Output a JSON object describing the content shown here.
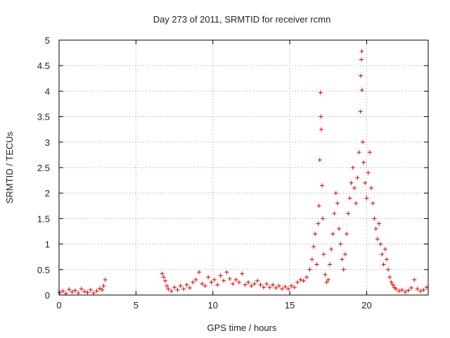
{
  "chart_data": {
    "type": "scatter",
    "title": "Day 273 of 2011, SRMTID for receiver rcmn",
    "xlabel": "GPS time / hours",
    "ylabel": "SRMTID / TECUs",
    "xlim": [
      0,
      24
    ],
    "ylim": [
      0,
      5
    ],
    "xticks": [
      0,
      5,
      10,
      15,
      20
    ],
    "yticks": [
      0,
      0.5,
      1,
      1.5,
      2,
      2.5,
      3,
      3.5,
      4,
      4.5,
      5
    ],
    "grid": true,
    "marker": "+",
    "series_color": "#e00000",
    "series": [
      {
        "name": "SRMTID",
        "points": [
          [
            0.05,
            0.05
          ],
          [
            0.25,
            0.08
          ],
          [
            0.45,
            0.03
          ],
          [
            0.65,
            0.11
          ],
          [
            0.85,
            0.06
          ],
          [
            1.05,
            0.09
          ],
          [
            1.25,
            0.04
          ],
          [
            1.45,
            0.12
          ],
          [
            1.65,
            0.07
          ],
          [
            1.85,
            0.05
          ],
          [
            2.05,
            0.1
          ],
          [
            2.25,
            0.04
          ],
          [
            2.45,
            0.08
          ],
          [
            2.65,
            0.13
          ],
          [
            2.8,
            0.1
          ],
          [
            2.9,
            0.18
          ],
          [
            3.0,
            0.3
          ],
          [
            6.7,
            0.42
          ],
          [
            6.8,
            0.35
          ],
          [
            6.9,
            0.28
          ],
          [
            7.0,
            0.18
          ],
          [
            7.1,
            0.12
          ],
          [
            7.3,
            0.08
          ],
          [
            7.5,
            0.15
          ],
          [
            7.7,
            0.1
          ],
          [
            7.9,
            0.18
          ],
          [
            8.1,
            0.12
          ],
          [
            8.3,
            0.2
          ],
          [
            8.5,
            0.14
          ],
          [
            8.7,
            0.25
          ],
          [
            8.9,
            0.3
          ],
          [
            9.1,
            0.45
          ],
          [
            9.3,
            0.22
          ],
          [
            9.5,
            0.18
          ],
          [
            9.7,
            0.35
          ],
          [
            9.9,
            0.25
          ],
          [
            10.1,
            0.3
          ],
          [
            10.3,
            0.2
          ],
          [
            10.5,
            0.38
          ],
          [
            10.7,
            0.28
          ],
          [
            10.9,
            0.45
          ],
          [
            11.1,
            0.32
          ],
          [
            11.3,
            0.22
          ],
          [
            11.5,
            0.3
          ],
          [
            11.7,
            0.25
          ],
          [
            11.9,
            0.42
          ],
          [
            12.1,
            0.2
          ],
          [
            12.3,
            0.25
          ],
          [
            12.5,
            0.18
          ],
          [
            12.7,
            0.22
          ],
          [
            12.9,
            0.28
          ],
          [
            13.1,
            0.2
          ],
          [
            13.3,
            0.15
          ],
          [
            13.5,
            0.22
          ],
          [
            13.7,
            0.15
          ],
          [
            13.9,
            0.2
          ],
          [
            14.1,
            0.14
          ],
          [
            14.3,
            0.18
          ],
          [
            14.5,
            0.12
          ],
          [
            14.7,
            0.16
          ],
          [
            14.9,
            0.12
          ],
          [
            15.1,
            0.18
          ],
          [
            15.3,
            0.15
          ],
          [
            15.5,
            0.25
          ],
          [
            15.7,
            0.3
          ],
          [
            15.9,
            0.28
          ],
          [
            16.1,
            0.35
          ],
          [
            16.3,
            0.5
          ],
          [
            16.45,
            0.7
          ],
          [
            16.55,
            0.95
          ],
          [
            16.65,
            1.2
          ],
          [
            16.75,
            0.6
          ],
          [
            16.85,
            1.4
          ],
          [
            16.9,
            1.75
          ],
          [
            16.95,
            2.65
          ],
          [
            17.0,
            3.97
          ],
          [
            17.02,
            3.5
          ],
          [
            17.05,
            3.25
          ],
          [
            17.1,
            2.15
          ],
          [
            17.15,
            1.5
          ],
          [
            17.2,
            0.8
          ],
          [
            17.3,
            0.4
          ],
          [
            17.4,
            0.25
          ],
          [
            17.5,
            0.3
          ],
          [
            17.6,
            0.6
          ],
          [
            17.7,
            0.9
          ],
          [
            17.8,
            1.2
          ],
          [
            17.9,
            1.6
          ],
          [
            18.0,
            2.0
          ],
          [
            18.1,
            1.8
          ],
          [
            18.2,
            1.3
          ],
          [
            18.3,
            1.0
          ],
          [
            18.4,
            0.7
          ],
          [
            18.5,
            0.5
          ],
          [
            18.6,
            0.8
          ],
          [
            18.7,
            1.2
          ],
          [
            18.8,
            1.6
          ],
          [
            18.9,
            1.9
          ],
          [
            19.0,
            2.2
          ],
          [
            19.1,
            2.5
          ],
          [
            19.2,
            2.1
          ],
          [
            19.3,
            1.8
          ],
          [
            19.4,
            2.3
          ],
          [
            19.5,
            2.8
          ],
          [
            19.6,
            3.6
          ],
          [
            19.62,
            4.3
          ],
          [
            19.65,
            4.62
          ],
          [
            19.68,
            4.78
          ],
          [
            19.7,
            4.02
          ],
          [
            19.75,
            3.0
          ],
          [
            19.8,
            2.6
          ],
          [
            19.9,
            2.2
          ],
          [
            20.0,
            1.9
          ],
          [
            20.1,
            2.4
          ],
          [
            20.2,
            2.8
          ],
          [
            20.3,
            2.1
          ],
          [
            20.4,
            1.8
          ],
          [
            20.5,
            1.5
          ],
          [
            20.6,
            1.3
          ],
          [
            20.7,
            1.1
          ],
          [
            20.8,
            1.4
          ],
          [
            20.9,
            1.0
          ],
          [
            21.0,
            0.8
          ],
          [
            21.1,
            0.6
          ],
          [
            21.2,
            0.9
          ],
          [
            21.3,
            0.7
          ],
          [
            21.4,
            0.5
          ],
          [
            21.5,
            0.35
          ],
          [
            21.6,
            0.25
          ],
          [
            21.7,
            0.2
          ],
          [
            21.8,
            0.15
          ],
          [
            21.9,
            0.12
          ],
          [
            22.1,
            0.08
          ],
          [
            22.3,
            0.1
          ],
          [
            22.5,
            0.06
          ],
          [
            22.7,
            0.09
          ],
          [
            22.9,
            0.14
          ],
          [
            23.1,
            0.3
          ],
          [
            23.3,
            0.12
          ],
          [
            23.5,
            0.08
          ],
          [
            23.7,
            0.1
          ],
          [
            23.9,
            0.15
          ]
        ]
      }
    ]
  }
}
